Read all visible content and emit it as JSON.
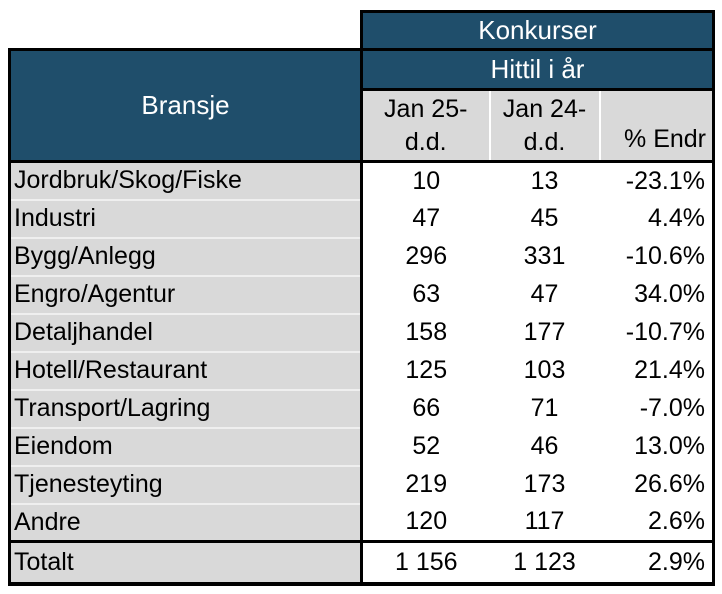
{
  "colors": {
    "header_blue": "#1F4E6B",
    "cell_gray": "#D9D9D9",
    "row_divider": "#EFEFEF",
    "border_black": "#000000",
    "header_text_white": "#FFFFFF",
    "body_text_black": "#000000"
  },
  "table": {
    "title": "Konkurser",
    "subtitle": "Hittil i år",
    "row_header": "Bransje",
    "columns": [
      {
        "line1": "Jan 25-",
        "line2": "d.d."
      },
      {
        "line1": "Jan 24-",
        "line2": "d.d."
      },
      {
        "line1": "",
        "line2": "% Endr"
      }
    ],
    "rows": [
      {
        "label": "Jordbruk/Skog/Fiske",
        "jan25": "10",
        "jan24": "13",
        "pct_endr": "-23.1%"
      },
      {
        "label": "Industri",
        "jan25": "47",
        "jan24": "45",
        "pct_endr": "4.4%"
      },
      {
        "label": "Bygg/Anlegg",
        "jan25": "296",
        "jan24": "331",
        "pct_endr": "-10.6%"
      },
      {
        "label": "Engro/Agentur",
        "jan25": "63",
        "jan24": "47",
        "pct_endr": "34.0%"
      },
      {
        "label": "Detaljhandel",
        "jan25": "158",
        "jan24": "177",
        "pct_endr": "-10.7%"
      },
      {
        "label": "Hotell/Restaurant",
        "jan25": "125",
        "jan24": "103",
        "pct_endr": "21.4%"
      },
      {
        "label": "Transport/Lagring",
        "jan25": "66",
        "jan24": "71",
        "pct_endr": "-7.0%"
      },
      {
        "label": "Eiendom",
        "jan25": "52",
        "jan24": "46",
        "pct_endr": "13.0%"
      },
      {
        "label": "Tjenesteyting",
        "jan25": "219",
        "jan24": "173",
        "pct_endr": "26.6%"
      },
      {
        "label": "Andre",
        "jan25": "120",
        "jan24": "117",
        "pct_endr": "2.6%"
      }
    ],
    "total": {
      "label": "Totalt",
      "jan25": "1 156",
      "jan24": "1 123",
      "pct_endr": "2.9%"
    }
  },
  "chart_data": {
    "type": "table",
    "title": "Konkurser",
    "subtitle": "Hittil i år",
    "columns": [
      "Bransje",
      "Jan 25-d.d.",
      "Jan 24-d.d.",
      "% Endr"
    ],
    "rows": [
      [
        "Jordbruk/Skog/Fiske",
        10,
        13,
        "-23.1%"
      ],
      [
        "Industri",
        47,
        45,
        "4.4%"
      ],
      [
        "Bygg/Anlegg",
        296,
        331,
        "-10.6%"
      ],
      [
        "Engro/Agentur",
        63,
        47,
        "34.0%"
      ],
      [
        "Detaljhandel",
        158,
        177,
        "-10.7%"
      ],
      [
        "Hotell/Restaurant",
        125,
        103,
        "21.4%"
      ],
      [
        "Transport/Lagring",
        66,
        71,
        "-7.0%"
      ],
      [
        "Eiendom",
        52,
        46,
        "13.0%"
      ],
      [
        "Tjenesteyting",
        219,
        173,
        "26.6%"
      ],
      [
        "Andre",
        120,
        117,
        "2.6%"
      ]
    ],
    "total_row": [
      "Totalt",
      "1 156",
      "1 123",
      "2.9%"
    ]
  }
}
